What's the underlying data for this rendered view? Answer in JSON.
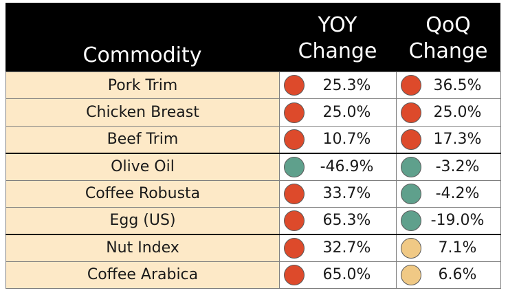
{
  "header": {
    "commodity": "Commodity",
    "yoy_line1": "YOY",
    "yoy_line2": "Change",
    "qoq_line1": "QoQ",
    "qoq_line2": "Change"
  },
  "colors": {
    "red": "#dd4a2b",
    "green": "#5fa08c",
    "yellow": "#f0c985",
    "name_bg": "#fde9c7"
  },
  "rows": [
    {
      "name": "Pork Trim",
      "yoy": "25.3%",
      "yoy_status": "red",
      "qoq": "36.5%",
      "qoq_status": "red"
    },
    {
      "name": "Chicken Breast",
      "yoy": "25.0%",
      "yoy_status": "red",
      "qoq": "25.0%",
      "qoq_status": "red"
    },
    {
      "name": "Beef Trim",
      "yoy": "10.7%",
      "yoy_status": "red",
      "qoq": "17.3%",
      "qoq_status": "red"
    },
    {
      "name": "Olive Oil",
      "yoy": "-46.9%",
      "yoy_status": "green",
      "qoq": "-3.2%",
      "qoq_status": "green"
    },
    {
      "name": "Coffee Robusta",
      "yoy": "33.7%",
      "yoy_status": "red",
      "qoq": "-4.2%",
      "qoq_status": "green"
    },
    {
      "name": "Egg (US)",
      "yoy": "65.3%",
      "yoy_status": "red",
      "qoq": "-19.0%",
      "qoq_status": "green"
    },
    {
      "name": "Nut Index",
      "yoy": "32.7%",
      "yoy_status": "red",
      "qoq": "7.1%",
      "qoq_status": "yellow"
    },
    {
      "name": "Coffee Arabica",
      "yoy": "65.0%",
      "yoy_status": "red",
      "qoq": "6.6%",
      "qoq_status": "yellow"
    }
  ]
}
